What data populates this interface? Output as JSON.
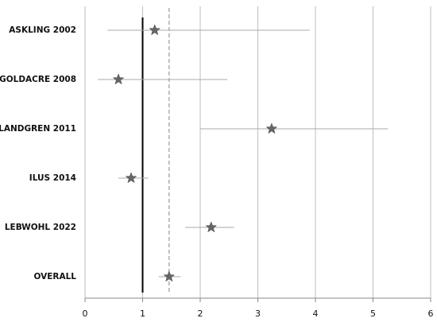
{
  "chart_data": {
    "type": "forest",
    "categories": [
      "ASKLING 2002",
      "GOLDACRE 2008",
      "LANDGREN 2011",
      "ILUS 2014",
      "LEBWOHL 2022",
      "OVERALL"
    ],
    "values": [
      1.21,
      0.58,
      3.24,
      0.8,
      2.19,
      1.46
    ],
    "lower": [
      0.39,
      0.22,
      2.0,
      0.58,
      1.74,
      1.28
    ],
    "upper": [
      3.9,
      2.47,
      5.26,
      1.1,
      2.59,
      1.66
    ],
    "color": "#666666",
    "reference_line": 1,
    "xlim": [
      0,
      6
    ],
    "xticks": [
      0,
      1,
      2,
      3,
      4,
      5,
      6
    ],
    "grid": true
  }
}
